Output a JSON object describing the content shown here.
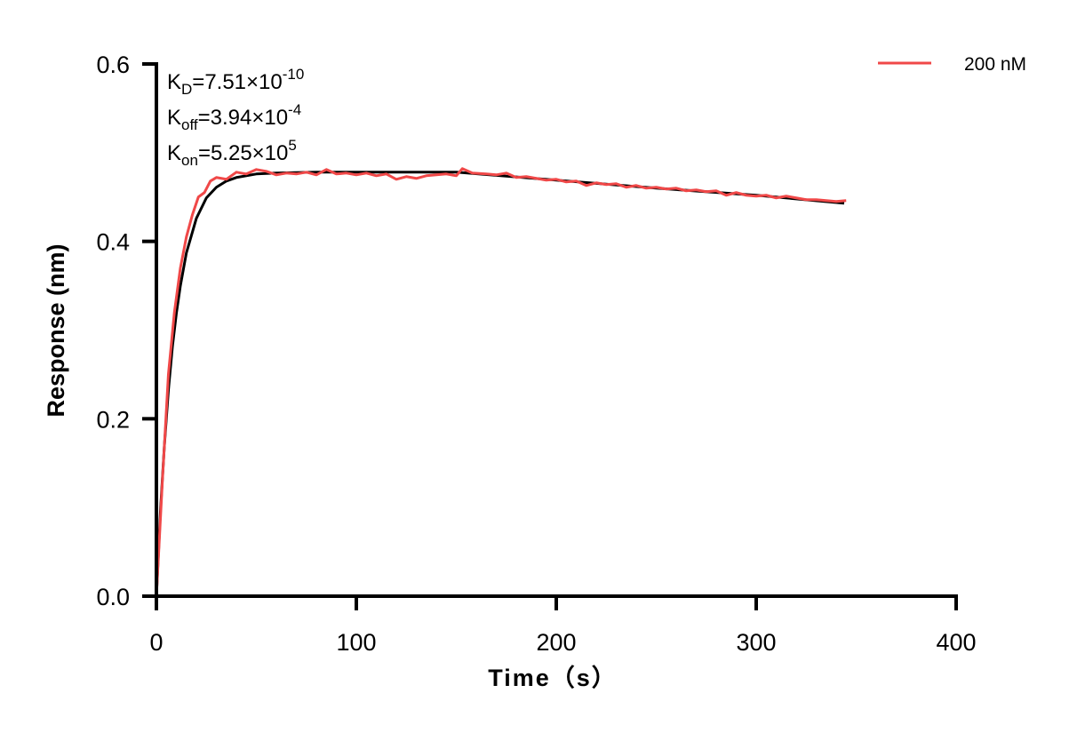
{
  "chart_data": {
    "type": "line",
    "xlabel": "Time（s）",
    "ylabel": "Response (nm)",
    "xlim": [
      0,
      400
    ],
    "ylim": [
      0,
      0.6
    ],
    "xticks": [
      "0",
      "100",
      "200",
      "300",
      "400"
    ],
    "yticks": [
      "0.0",
      "0.2",
      "0.4",
      "0.6"
    ],
    "grid": false,
    "legend_position": "top-right",
    "annotations": {
      "kd": {
        "k": "K",
        "sub": "D",
        "val": "=7.51×10",
        "sup": "-10"
      },
      "koff": {
        "k": "K",
        "sub": "off",
        "val": "=3.94×10",
        "sup": "-4"
      },
      "kon": {
        "k": "K",
        "sub": "on",
        "val": "=5.25×10",
        "sup": "5"
      }
    },
    "series": [
      {
        "name": "200 nM",
        "color": "#f04848",
        "x": [
          0,
          3,
          6,
          9,
          12,
          15,
          18,
          21,
          24,
          27,
          30,
          35,
          40,
          45,
          50,
          55,
          60,
          65,
          70,
          75,
          80,
          85,
          90,
          95,
          100,
          105,
          110,
          115,
          120,
          125,
          130,
          135,
          140,
          145,
          150,
          153,
          158,
          165,
          170,
          175,
          180,
          185,
          190,
          195,
          200,
          205,
          210,
          215,
          220,
          225,
          230,
          235,
          240,
          245,
          250,
          255,
          260,
          265,
          270,
          275,
          280,
          285,
          290,
          295,
          300,
          305,
          310,
          315,
          320,
          325,
          330,
          335,
          340,
          345
        ],
        "y": [
          0,
          0.13,
          0.25,
          0.32,
          0.37,
          0.405,
          0.43,
          0.45,
          0.455,
          0.468,
          0.472,
          0.47,
          0.478,
          0.476,
          0.481,
          0.479,
          0.475,
          0.477,
          0.476,
          0.478,
          0.475,
          0.481,
          0.476,
          0.477,
          0.475,
          0.477,
          0.474,
          0.476,
          0.47,
          0.473,
          0.471,
          0.474,
          0.475,
          0.476,
          0.474,
          0.482,
          0.477,
          0.476,
          0.475,
          0.477,
          0.472,
          0.473,
          0.471,
          0.469,
          0.47,
          0.467,
          0.468,
          0.463,
          0.466,
          0.464,
          0.465,
          0.461,
          0.463,
          0.46,
          0.461,
          0.459,
          0.46,
          0.457,
          0.458,
          0.456,
          0.457,
          0.452,
          0.455,
          0.452,
          0.451,
          0.452,
          0.449,
          0.451,
          0.449,
          0.447,
          0.447,
          0.446,
          0.445,
          0.446
        ]
      },
      {
        "color": "#000000",
        "x": [
          0,
          2,
          4,
          6,
          8,
          10,
          12,
          15,
          20,
          25,
          30,
          35,
          40,
          50,
          60,
          80,
          150,
          200,
          250,
          300,
          344
        ],
        "y": [
          0,
          0.095,
          0.17,
          0.232,
          0.281,
          0.319,
          0.35,
          0.387,
          0.426,
          0.449,
          0.461,
          0.468,
          0.472,
          0.476,
          0.477,
          0.478,
          0.478,
          0.469,
          0.46,
          0.452,
          0.443
        ]
      }
    ]
  }
}
